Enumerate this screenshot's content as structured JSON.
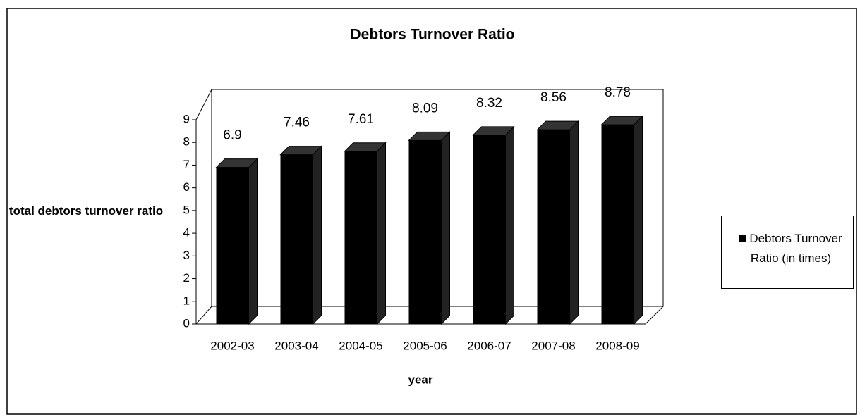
{
  "chart_data": {
    "type": "bar",
    "title": "Debtors Turnover Ratio",
    "x_label": "year",
    "y_label": "total debtors turnover ratio",
    "categories": [
      "2002-03",
      "2003-04",
      "2004-05",
      "2005-06",
      "2006-07",
      "2007-08",
      "2008-09"
    ],
    "series": [
      {
        "name": "Debtors Turnover Ratio (in times)",
        "color": "#000000",
        "values": [
          6.9,
          7.46,
          7.61,
          8.09,
          8.32,
          8.56,
          8.78
        ]
      }
    ],
    "ylim": [
      0,
      9
    ],
    "yticks": [
      0,
      1,
      2,
      3,
      4,
      5,
      6,
      7,
      8,
      9
    ],
    "legend": "right",
    "grid": false
  }
}
